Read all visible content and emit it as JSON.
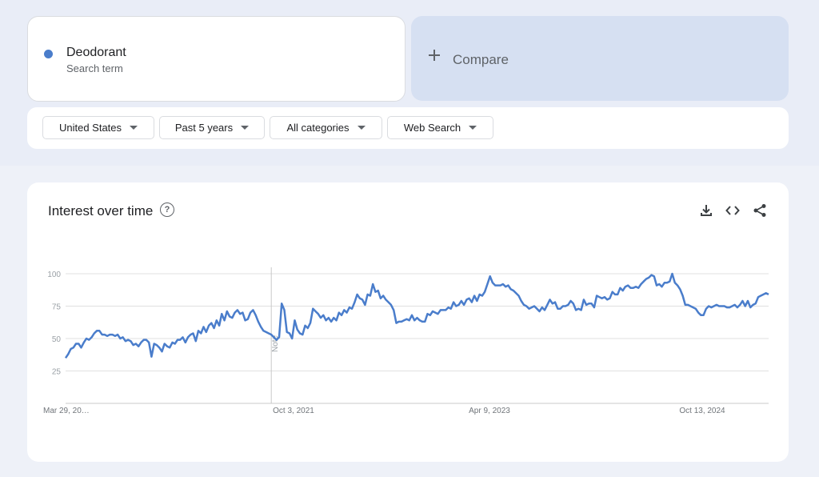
{
  "search_term": {
    "name": "Deodorant",
    "subtitle": "Search term",
    "color": "#4a7dcb"
  },
  "compare": {
    "label": "Compare",
    "icon": "plus-icon"
  },
  "filters": [
    {
      "label": "United States",
      "icon": "caret-down-icon"
    },
    {
      "label": "Past 5 years",
      "icon": "caret-down-icon"
    },
    {
      "label": "All categories",
      "icon": "caret-down-icon"
    },
    {
      "label": "Web Search",
      "icon": "caret-down-icon"
    }
  ],
  "chart_card": {
    "title": "Interest over time",
    "help_icon": "help-circle-icon",
    "toolbar": [
      "download-icon",
      "embed-code-icon",
      "share-icon"
    ]
  },
  "chart_data": {
    "type": "line",
    "title": "Interest over time",
    "x_ticks": [
      "Mar 29, 20…",
      "Oct 3, 2021",
      "Apr 9, 2023",
      "Oct 13, 2024"
    ],
    "y_ticks": [
      25,
      50,
      75,
      100
    ],
    "ylim": [
      0,
      100
    ],
    "grid": true,
    "annotation": {
      "label": "Note",
      "x_index": 79
    },
    "series": [
      {
        "color": "#4a7dcb",
        "values": [
          35,
          38,
          42,
          43,
          46,
          46,
          43,
          47,
          50,
          49,
          51,
          54,
          56,
          56,
          53,
          53,
          52,
          53,
          53,
          52,
          53,
          50,
          51,
          48,
          49,
          48,
          45,
          46,
          44,
          47,
          49,
          49,
          47,
          36,
          46,
          45,
          43,
          40,
          46,
          44,
          43,
          47,
          46,
          49,
          49,
          51,
          47,
          51,
          53,
          54,
          48,
          56,
          54,
          59,
          55,
          60,
          62,
          58,
          64,
          60,
          69,
          64,
          71,
          67,
          66,
          70,
          72,
          69,
          70,
          64,
          65,
          70,
          72,
          68,
          63,
          59,
          56,
          55,
          54,
          53,
          51,
          49,
          51,
          77,
          72,
          55,
          54,
          50,
          64,
          57,
          54,
          53,
          60,
          58,
          62,
          73,
          71,
          69,
          66,
          68,
          64,
          66,
          63,
          66,
          64,
          70,
          68,
          72,
          70,
          74,
          73,
          78,
          84,
          81,
          80,
          76,
          84,
          83,
          92,
          86,
          87,
          81,
          83,
          80,
          78,
          76,
          72,
          62,
          63,
          63,
          64,
          65,
          64,
          68,
          64,
          66,
          64,
          63,
          63,
          69,
          68,
          71,
          70,
          69,
          72,
          72,
          72,
          74,
          73,
          78,
          75,
          76,
          79,
          76,
          80,
          81,
          78,
          83,
          79,
          84,
          83,
          86,
          92,
          98,
          93,
          91,
          91,
          91,
          92,
          90,
          91,
          88,
          87,
          85,
          83,
          79,
          76,
          75,
          73,
          74,
          75,
          73,
          71,
          74,
          72,
          76,
          80,
          77,
          78,
          73,
          73,
          75,
          75,
          76,
          79,
          77,
          72,
          73,
          72,
          80,
          76,
          77,
          77,
          74,
          83,
          82,
          81,
          82,
          80,
          81,
          86,
          84,
          84,
          89,
          87,
          90,
          91,
          89,
          89,
          90,
          89,
          92,
          94,
          96,
          97,
          99,
          98,
          91,
          92,
          90,
          93,
          93,
          94,
          100,
          93,
          91,
          88,
          83,
          76,
          76,
          75,
          74,
          73,
          70,
          68,
          68,
          73,
          75,
          74,
          75,
          76,
          75,
          75,
          75,
          74,
          74,
          75,
          76,
          74,
          76,
          79,
          75,
          79,
          74,
          76,
          77,
          82,
          83,
          84,
          85,
          84
        ]
      }
    ]
  }
}
